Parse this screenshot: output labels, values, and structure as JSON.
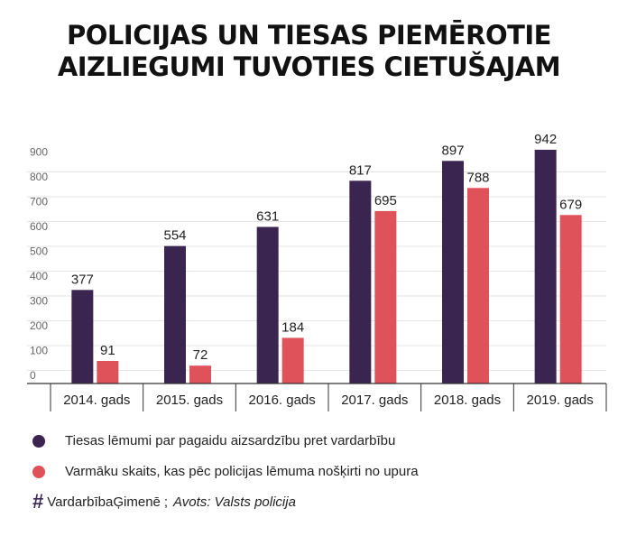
{
  "title_lines": [
    "POLICIJAS UN TIESAS PIEMĒROTIE",
    "AIZLIEGUMI TUVOTIES CIETUŠAJAM"
  ],
  "colors": {
    "series1": "#3a2450",
    "series2": "#e0525a",
    "grid": "#e5e5e5",
    "axis": "#333333"
  },
  "chart_data": {
    "type": "bar",
    "title": "POLICIJAS UN TIESAS PIEMĒROTIE AIZLIEGUMI TUVOTIES CIETUŠAJAM",
    "categories": [
      "2014. gads",
      "2015. gads",
      "2016. gads",
      "2017. gads",
      "2018. gads",
      "2019. gads"
    ],
    "series": [
      {
        "name": "Tiesas lēmumi par pagaidu aizsardzību pret vardarbību",
        "values": [
          377,
          554,
          631,
          817,
          897,
          942
        ]
      },
      {
        "name": "Varmāku skaits, kas pēc policijas lēmuma nošķirti no upura",
        "values": [
          91,
          72,
          184,
          695,
          788,
          679
        ]
      }
    ],
    "yticks": [
      "0",
      "100",
      "200",
      "300",
      "400",
      "500",
      "600",
      "700",
      "800",
      "900"
    ],
    "ylim": [
      0,
      1000
    ],
    "grid": true,
    "legend_position": "bottom"
  },
  "footer": {
    "hashtag": "VardarbībaĢimenē",
    "separator": ";",
    "source": "Avots: Valsts policija"
  }
}
